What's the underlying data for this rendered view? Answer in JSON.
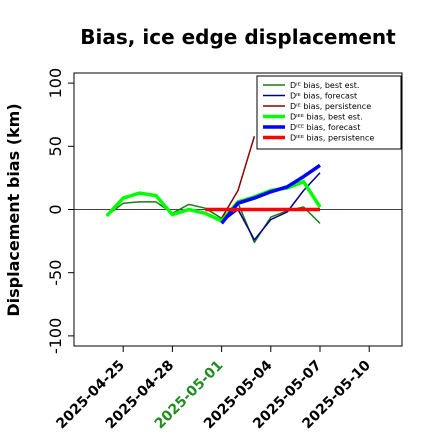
{
  "chart_data": {
    "type": "line",
    "title": "Bias, ice edge displacement",
    "ylabel": "Displacement bias (km)",
    "xlabel": "",
    "ylim": [
      -108,
      108
    ],
    "xlim": [
      "2025-04-22",
      "2025-05-12"
    ],
    "yticks": [
      -100,
      -50,
      0,
      50,
      100
    ],
    "ytick_labels": [
      "-100",
      "-50",
      "0",
      "50",
      "100"
    ],
    "xticks": [
      "2025-04-25",
      "2025-04-28",
      "2025-05-01",
      "2025-05-04",
      "2025-05-07",
      "2025-05-10"
    ],
    "xtick_labels": [
      "2025-04-25",
      "2025-04-28",
      "2025-05-01",
      "2025-05-04",
      "2025-05-07",
      "2025-05-10"
    ],
    "highlight_tick": "2025-05-01",
    "highlight_color": "#228b22",
    "legend_position": "top-right",
    "zero_line": true,
    "series": [
      {
        "name": "Dᴵᴱ bias, best est.",
        "color": "#1a7a1a",
        "width": 1.5,
        "points": [
          [
            "2025-04-24",
            -5
          ],
          [
            "2025-04-25",
            5
          ],
          [
            "2025-04-26",
            6
          ],
          [
            "2025-04-27",
            6
          ],
          [
            "2025-04-28",
            -3
          ],
          [
            "2025-04-29",
            4
          ],
          [
            "2025-04-30",
            1
          ],
          [
            "2025-05-01",
            -7
          ],
          [
            "2025-05-02",
            5
          ],
          [
            "2025-05-03",
            -26
          ],
          [
            "2025-05-04",
            -6
          ],
          [
            "2025-05-05",
            -1
          ],
          [
            "2025-05-06",
            2
          ],
          [
            "2025-05-07",
            -11
          ]
        ]
      },
      {
        "name": "Dᴵᴱ bias, forecast",
        "color": "#00008b",
        "width": 1.5,
        "points": [
          [
            "2025-05-01",
            -10
          ],
          [
            "2025-05-02",
            0
          ],
          [
            "2025-05-03",
            -24
          ],
          [
            "2025-05-04",
            -8
          ],
          [
            "2025-05-05",
            -2
          ],
          [
            "2025-05-06",
            15
          ],
          [
            "2025-05-07",
            29
          ]
        ]
      },
      {
        "name": "Dᴵᴱ bias, persistence",
        "color": "#8b0000",
        "width": 1.5,
        "points": [
          [
            "2025-05-01",
            -7
          ],
          [
            "2025-05-02",
            15
          ],
          [
            "2025-05-03",
            58
          ]
        ]
      },
      {
        "name": "Dᴵᴱᴱ bias, best est.",
        "color": "#00ff00",
        "width": 3.5,
        "points": [
          [
            "2025-04-24",
            -5
          ],
          [
            "2025-04-25",
            9
          ],
          [
            "2025-04-26",
            13
          ],
          [
            "2025-04-27",
            11
          ],
          [
            "2025-04-28",
            -4
          ],
          [
            "2025-04-29",
            0
          ],
          [
            "2025-04-30",
            -3
          ],
          [
            "2025-05-01",
            -9
          ],
          [
            "2025-05-02",
            6
          ],
          [
            "2025-05-03",
            10
          ],
          [
            "2025-05-04",
            15
          ],
          [
            "2025-05-05",
            17
          ],
          [
            "2025-05-06",
            22
          ],
          [
            "2025-05-07",
            2
          ]
        ]
      },
      {
        "name": "Dᴵᴱᴱ bias, forecast",
        "color": "#0000ff",
        "width": 3.5,
        "points": [
          [
            "2025-05-01",
            -11
          ],
          [
            "2025-05-02",
            5
          ],
          [
            "2025-05-03",
            9
          ],
          [
            "2025-05-04",
            14
          ],
          [
            "2025-05-05",
            18
          ],
          [
            "2025-05-06",
            26
          ],
          [
            "2025-05-07",
            35
          ]
        ]
      },
      {
        "name": "Dᴵᴱᴱ bias, persistence",
        "color": "#ff0000",
        "width": 3.5,
        "points": [
          [
            "2025-04-30",
            0
          ],
          [
            "2025-05-07",
            0
          ]
        ]
      }
    ]
  }
}
